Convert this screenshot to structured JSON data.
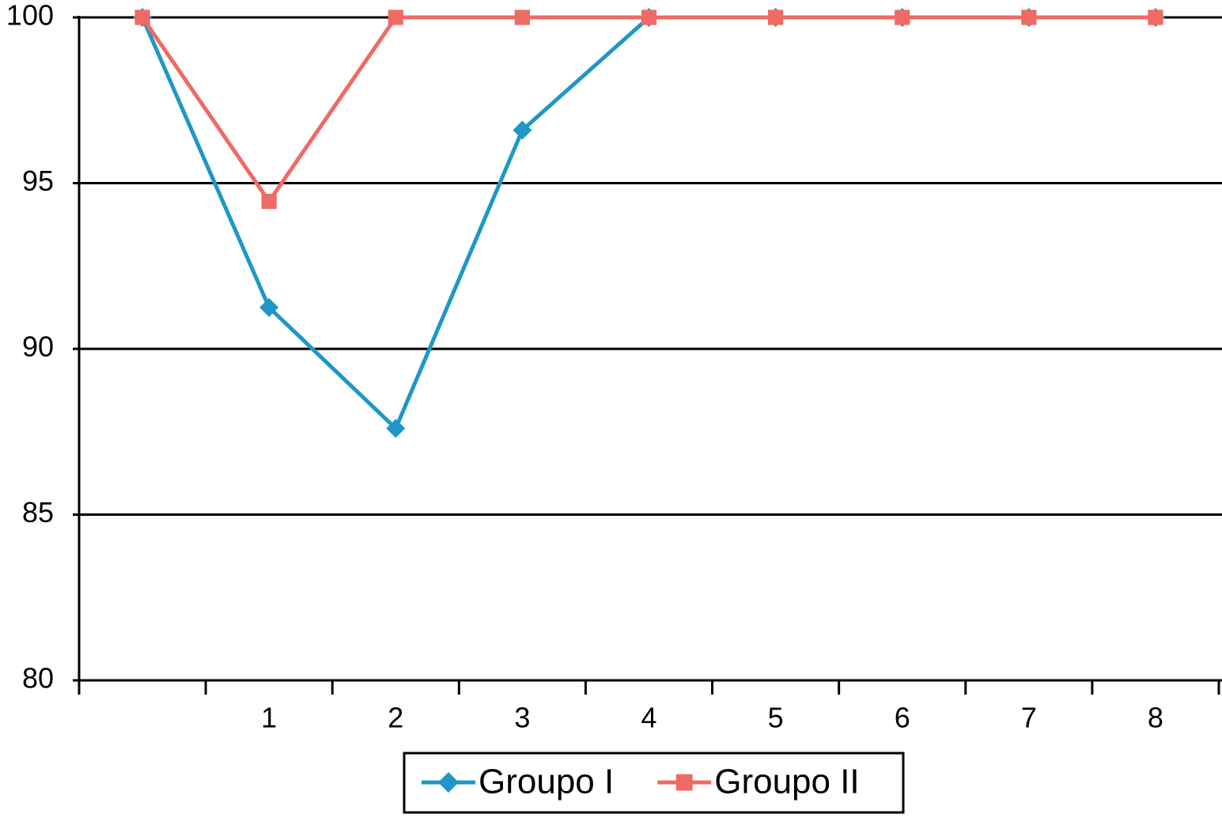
{
  "chart_data": {
    "type": "line",
    "categories": [
      null,
      "1",
      "2",
      "3",
      "4",
      "5",
      "6",
      "7",
      "8"
    ],
    "series": [
      {
        "name": "Groupo I",
        "color": "#1f97c6",
        "marker": "diamond",
        "values": [
          100,
          91.25,
          87.6,
          96.6,
          100,
          100,
          100,
          100,
          100
        ]
      },
      {
        "name": "Groupo II",
        "color": "#ef6a64",
        "marker": "square",
        "values": [
          100,
          94.45,
          100,
          100,
          100,
          100,
          100,
          100,
          100
        ]
      }
    ],
    "ylim": [
      80,
      100
    ],
    "yticks": [
      80,
      85,
      90,
      95,
      100
    ],
    "grid": true,
    "legend": "bottom"
  }
}
